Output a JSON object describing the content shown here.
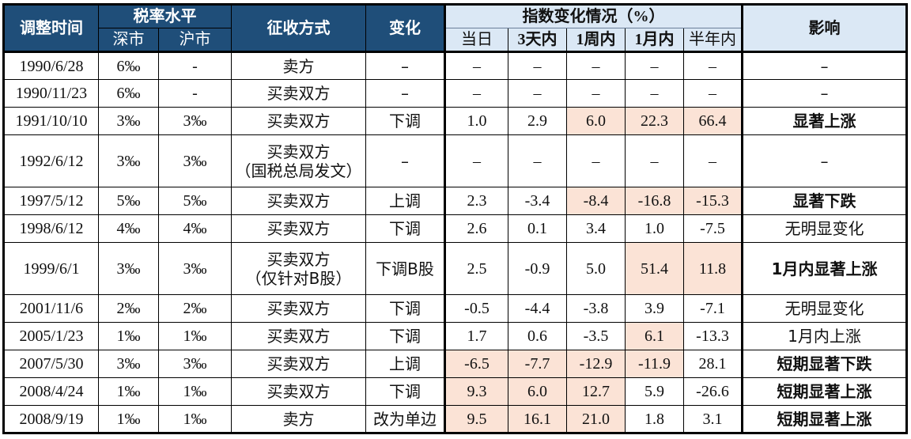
{
  "table": {
    "headers": {
      "adjust_time": "调整时间",
      "tax_rate_level": "税率水平",
      "shenzhen": "深市",
      "shanghai": "沪市",
      "collection_method": "征收方式",
      "change": "变化",
      "index_change": "指数变化情况（%）",
      "same_day": "当日",
      "within_3_days": "3天内",
      "within_1_week": "1周内",
      "within_1_month": "1月内",
      "within_half_year": "半年内",
      "impact": "影响"
    },
    "rows": [
      {
        "date": "1990/6/28",
        "sz": "6‰",
        "sh": "-",
        "method": "卖方",
        "method2": "",
        "change": "–",
        "d0": "–",
        "d3": "–",
        "w1": "–",
        "m1": "–",
        "h6": "–",
        "impact": "–",
        "impact_bold": false,
        "hl": [
          false,
          false,
          false,
          false,
          false
        ]
      },
      {
        "date": "1990/11/23",
        "sz": "6‰",
        "sh": "-",
        "method": "买卖双方",
        "method2": "",
        "change": "–",
        "d0": "–",
        "d3": "–",
        "w1": "–",
        "m1": "–",
        "h6": "–",
        "impact": "–",
        "impact_bold": false,
        "hl": [
          false,
          false,
          false,
          false,
          false
        ]
      },
      {
        "date": "1991/10/10",
        "sz": "3‰",
        "sh": "3‰",
        "method": "买卖双方",
        "method2": "",
        "change": "下调",
        "d0": "1.0",
        "d3": "2.9",
        "w1": "6.0",
        "m1": "22.3",
        "h6": "66.4",
        "impact": "显著上涨",
        "impact_bold": true,
        "hl": [
          false,
          false,
          true,
          true,
          true
        ]
      },
      {
        "date": "1992/6/12",
        "sz": "3‰",
        "sh": "3‰",
        "method": "买卖双方",
        "method2": "（国税总局发文）",
        "change": "–",
        "d0": "–",
        "d3": "–",
        "w1": "–",
        "m1": "–",
        "h6": "–",
        "impact": "–",
        "impact_bold": false,
        "hl": [
          false,
          false,
          false,
          false,
          false
        ]
      },
      {
        "date": "1997/5/12",
        "sz": "5‰",
        "sh": "5‰",
        "method": "买卖双方",
        "method2": "",
        "change": "上调",
        "d0": "2.3",
        "d3": "-3.4",
        "w1": "-8.4",
        "m1": "-16.8",
        "h6": "-15.3",
        "impact": "显著下跌",
        "impact_bold": true,
        "hl": [
          false,
          false,
          true,
          true,
          true
        ]
      },
      {
        "date": "1998/6/12",
        "sz": "4‰",
        "sh": "4‰",
        "method": "买卖双方",
        "method2": "",
        "change": "下调",
        "d0": "2.6",
        "d3": "0.1",
        "w1": "3.4",
        "m1": "1.0",
        "h6": "-7.5",
        "impact": "无明显变化",
        "impact_bold": false,
        "hl": [
          false,
          false,
          false,
          false,
          false
        ]
      },
      {
        "date": "1999/6/1",
        "sz": "3‰",
        "sh": "3‰",
        "method": "买卖双方",
        "method2": "（仅针对B股）",
        "change": "下调B股",
        "d0": "2.5",
        "d3": "-0.9",
        "w1": "5.0",
        "m1": "51.4",
        "h6": "11.8",
        "impact": "1月内显著上涨",
        "impact_bold": true,
        "hl": [
          false,
          false,
          false,
          true,
          true
        ]
      },
      {
        "date": "2001/11/6",
        "sz": "2‰",
        "sh": "2‰",
        "method": "买卖双方",
        "method2": "",
        "change": "下调",
        "d0": "-0.5",
        "d3": "-4.4",
        "w1": "-3.8",
        "m1": "3.9",
        "h6": "-7.1",
        "impact": "无明显变化",
        "impact_bold": false,
        "hl": [
          false,
          false,
          false,
          false,
          false
        ]
      },
      {
        "date": "2005/1/23",
        "sz": "1‰",
        "sh": "1‰",
        "method": "买卖双方",
        "method2": "",
        "change": "下调",
        "d0": "1.7",
        "d3": "0.6",
        "w1": "-3.5",
        "m1": "6.1",
        "h6": "-13.3",
        "impact": "1月内上涨",
        "impact_bold": false,
        "hl": [
          false,
          false,
          false,
          true,
          false
        ]
      },
      {
        "date": "2007/5/30",
        "sz": "3‰",
        "sh": "3‰",
        "method": "买卖双方",
        "method2": "",
        "change": "上调",
        "d0": "-6.5",
        "d3": "-7.7",
        "w1": "-12.9",
        "m1": "-11.9",
        "h6": "28.1",
        "impact": "短期显著下跌",
        "impact_bold": true,
        "hl": [
          true,
          true,
          true,
          true,
          false
        ]
      },
      {
        "date": "2008/4/24",
        "sz": "1‰",
        "sh": "1‰",
        "method": "买卖双方",
        "method2": "",
        "change": "下调",
        "d0": "9.3",
        "d3": "6.0",
        "w1": "12.7",
        "m1": "5.9",
        "h6": "-26.6",
        "impact": "短期显著上涨",
        "impact_bold": true,
        "hl": [
          true,
          true,
          true,
          false,
          false
        ]
      },
      {
        "date": "2008/9/19",
        "sz": "1‰",
        "sh": "1‰",
        "method": "卖方",
        "method2": "",
        "change": "改为单边",
        "d0": "9.5",
        "d3": "16.1",
        "w1": "21.0",
        "m1": "1.8",
        "h6": "3.1",
        "impact": "短期显著上涨",
        "impact_bold": true,
        "hl": [
          true,
          true,
          true,
          false,
          false
        ]
      }
    ]
  },
  "colors": {
    "header_dark": "#1f4e79",
    "header_light": "#dbe8f5",
    "highlight": "#fbe3d6",
    "border": "#000000"
  }
}
